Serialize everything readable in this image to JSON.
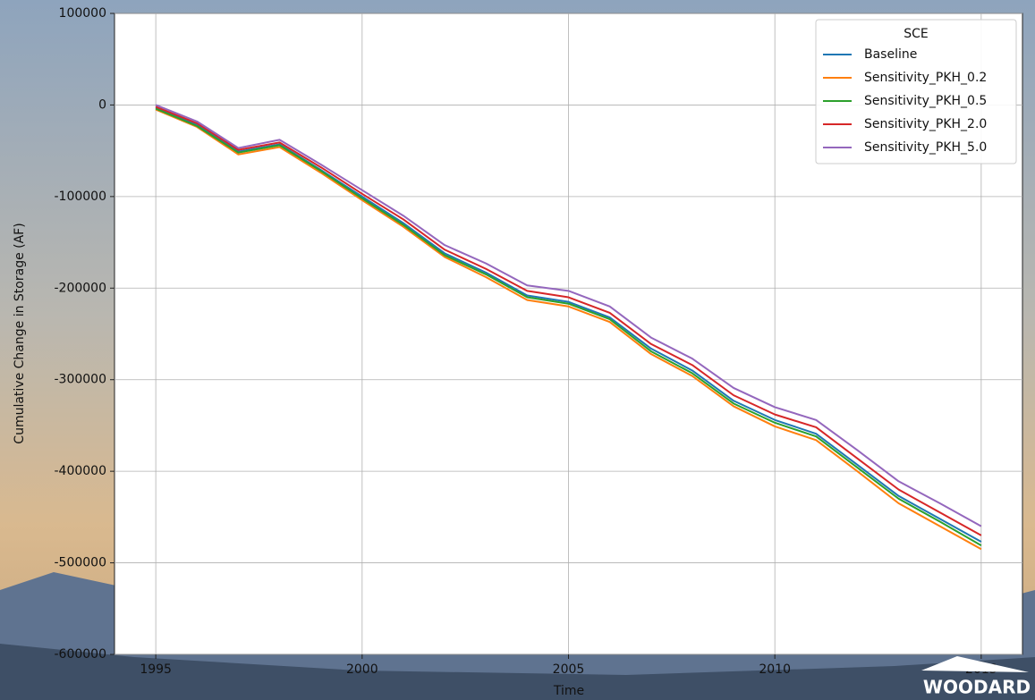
{
  "chart_data": {
    "type": "line",
    "x_label": "Time",
    "y_label": "Cumulative Change in Storage (AF)",
    "x": [
      1995,
      1996,
      1997,
      1998,
      1999,
      2000,
      2001,
      2002,
      2003,
      2004,
      2005,
      2006,
      2007,
      2008,
      2009,
      2010,
      2011,
      2012,
      2013,
      2014,
      2015
    ],
    "series": [
      {
        "name": "Baseline",
        "color": "#1f77b4",
        "values": [
          -3000,
          -22000,
          -51000,
          -43000,
          -71000,
          -100000,
          -129000,
          -162000,
          -183000,
          -208000,
          -215000,
          -232000,
          -266000,
          -290000,
          -323000,
          -344000,
          -359000,
          -393000,
          -427000,
          -452000,
          -477000
        ]
      },
      {
        "name": "Sensitivity_PKH_0.2",
        "color": "#ff7f0e",
        "values": [
          -5000,
          -24000,
          -54000,
          -46000,
          -74000,
          -104000,
          -133000,
          -166000,
          -188000,
          -213000,
          -220000,
          -237000,
          -272000,
          -296000,
          -329000,
          -351000,
          -366000,
          -400000,
          -435000,
          -460000,
          -485000
        ]
      },
      {
        "name": "Sensitivity_PKH_0.5",
        "color": "#2ca02c",
        "values": [
          -4000,
          -23000,
          -52000,
          -44000,
          -72000,
          -102000,
          -131000,
          -164000,
          -185000,
          -210000,
          -217000,
          -234000,
          -269000,
          -293000,
          -326000,
          -347000,
          -362000,
          -396000,
          -430000,
          -455000,
          -481000
        ]
      },
      {
        "name": "Sensitivity_PKH_2.0",
        "color": "#d62728",
        "values": [
          -2000,
          -20000,
          -49000,
          -41000,
          -68000,
          -97000,
          -125000,
          -158000,
          -179000,
          -203000,
          -210000,
          -227000,
          -261000,
          -284000,
          -317000,
          -338000,
          -352000,
          -386000,
          -420000,
          -445000,
          -470000
        ]
      },
      {
        "name": "Sensitivity_PKH_5.0",
        "color": "#9467bd",
        "values": [
          0,
          -18000,
          -47000,
          -38000,
          -65000,
          -93000,
          -121000,
          -153000,
          -173000,
          -197000,
          -203000,
          -220000,
          -254000,
          -277000,
          -309000,
          -330000,
          -344000,
          -377000,
          -411000,
          -435000,
          -460000
        ]
      }
    ],
    "legend_title": "SCE",
    "legend_position": "upper right",
    "grid": true,
    "xlim": [
      1994,
      2016
    ],
    "xticks": [
      1995,
      2000,
      2005,
      2010,
      2015
    ],
    "ylim": [
      -600000,
      100000
    ],
    "yticks": [
      100000,
      0,
      -100000,
      -200000,
      -300000,
      -400000,
      -500000,
      -600000
    ]
  },
  "logo_text": "WOODARD"
}
